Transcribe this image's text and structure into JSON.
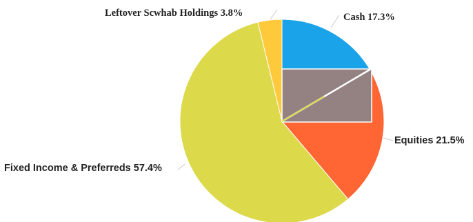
{
  "chart_data": {
    "type": "pie",
    "title": "",
    "slices": [
      {
        "name": "Cash",
        "value": 17.3,
        "label": "Cash 17.3%",
        "color": "#1aa3e8"
      },
      {
        "name": "Equities",
        "value": 21.5,
        "label": "Equities 21.5%",
        "color": "#ff6633"
      },
      {
        "name": "Fixed Income & Preferreds",
        "value": 57.4,
        "label": "Fixed Income & Preferreds 57.4%",
        "color": "#dcd94a"
      },
      {
        "name": "Leftover Scwhab Holdings",
        "value": 3.8,
        "label": "Leftover Scwhab Holdings  3.8%",
        "color": "#ffc93c"
      }
    ],
    "overlay_box_color": "#948283",
    "legend": "none"
  }
}
